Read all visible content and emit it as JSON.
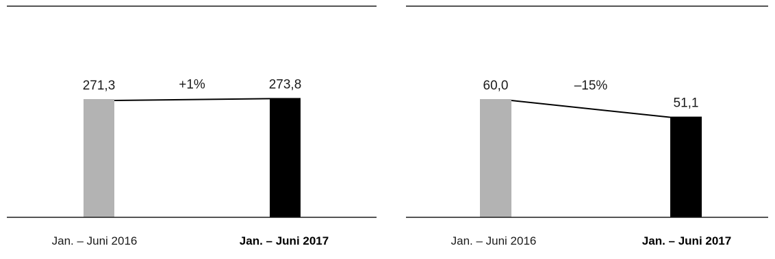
{
  "colors": {
    "previous": "#b3b3b3",
    "current": "#000000",
    "rule": "#1a1a1a"
  },
  "chart_data": [
    {
      "type": "bar",
      "categories": [
        "Jan. – Juni 2016",
        "Jan. – Juni 2017"
      ],
      "values": [
        271.3,
        273.8
      ],
      "value_labels": [
        "271,3",
        "273,8"
      ],
      "change_label": "+1%",
      "bold_category": 1
    },
    {
      "type": "bar",
      "categories": [
        "Jan. – Juni 2016",
        "Jan. – Juni 2017"
      ],
      "values": [
        60.0,
        51.1
      ],
      "value_labels": [
        "60,0",
        "51,1"
      ],
      "change_label": "–15%",
      "bold_category": 1
    }
  ]
}
